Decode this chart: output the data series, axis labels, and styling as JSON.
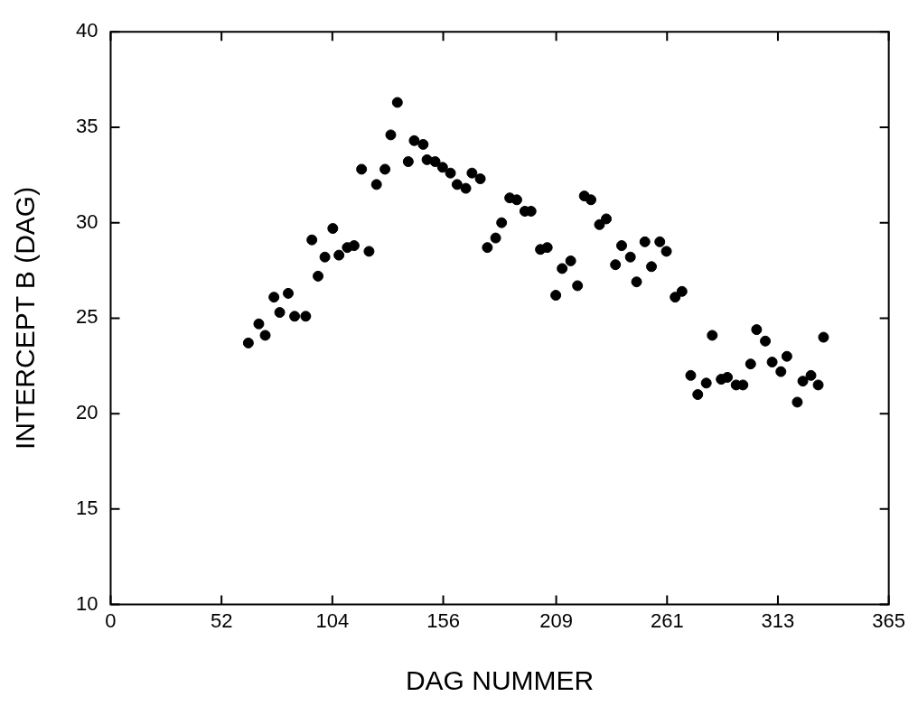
{
  "chart_data": {
    "type": "scatter",
    "xlabel": "DAG NUMMER",
    "ylabel": "INTERCEPT B (DAG)",
    "xlim": [
      0,
      365
    ],
    "xticks": [
      0,
      52,
      104,
      156,
      209,
      261,
      313,
      365
    ],
    "ylim": [
      10,
      40
    ],
    "yticks": [
      10,
      15,
      20,
      25,
      30,
      35,
      40
    ],
    "grid": false,
    "legend": false,
    "marker": "circle",
    "series": [
      {
        "color": "#000000",
        "x": [
          64.6,
          69.5,
          72.5,
          76.6,
          79.3,
          83.3,
          86.3,
          91.5,
          94.4,
          97.3,
          100.5,
          104.2,
          107.1,
          111.0,
          114.2,
          117.7,
          121.2,
          124.7,
          128.7,
          131.4,
          134.5,
          139.6,
          142.4,
          146.6,
          148.4,
          152.2,
          155.7,
          159.4,
          162.5,
          166.6,
          169.5,
          173.4,
          176.7,
          180.6,
          183.4,
          187.2,
          190.5,
          194.3,
          197.2,
          201.6,
          204.8,
          208.8,
          211.8,
          215.8,
          219.0,
          222.2,
          225.3,
          229.3,
          232.5,
          236.8,
          239.7,
          243.8,
          246.7,
          250.6,
          253.7,
          257.6,
          260.7,
          264.8,
          268.0,
          272.1,
          275.4,
          279.4,
          282.2,
          286.4,
          289.3,
          293.4,
          296.6,
          300.2,
          303.0,
          307.1,
          310.3,
          314.4,
          317.2,
          322.1,
          324.7,
          328.5,
          331.9,
          334.4
        ],
        "values": [
          23.7,
          24.7,
          24.1,
          26.1,
          25.3,
          26.3,
          25.1,
          25.1,
          29.1,
          27.2,
          28.2,
          29.7,
          28.3,
          28.7,
          28.8,
          32.8,
          28.5,
          32.0,
          32.8,
          34.6,
          36.3,
          33.2,
          34.3,
          34.1,
          33.3,
          33.2,
          32.9,
          32.6,
          32.0,
          31.8,
          32.6,
          32.3,
          28.7,
          29.2,
          30.0,
          31.3,
          31.2,
          30.6,
          30.6,
          28.6,
          28.7,
          26.2,
          27.6,
          28.0,
          26.7,
          31.4,
          31.2,
          29.9,
          30.2,
          27.8,
          28.8,
          28.2,
          26.9,
          29.0,
          27.7,
          29.0,
          28.5,
          26.1,
          26.4,
          22.0,
          21.0,
          21.6,
          24.1,
          21.8,
          21.9,
          21.5,
          21.5,
          22.6,
          24.4,
          23.8,
          22.7,
          22.2,
          23.0,
          20.6,
          21.7,
          22.0,
          21.5,
          24.0
        ]
      }
    ]
  }
}
